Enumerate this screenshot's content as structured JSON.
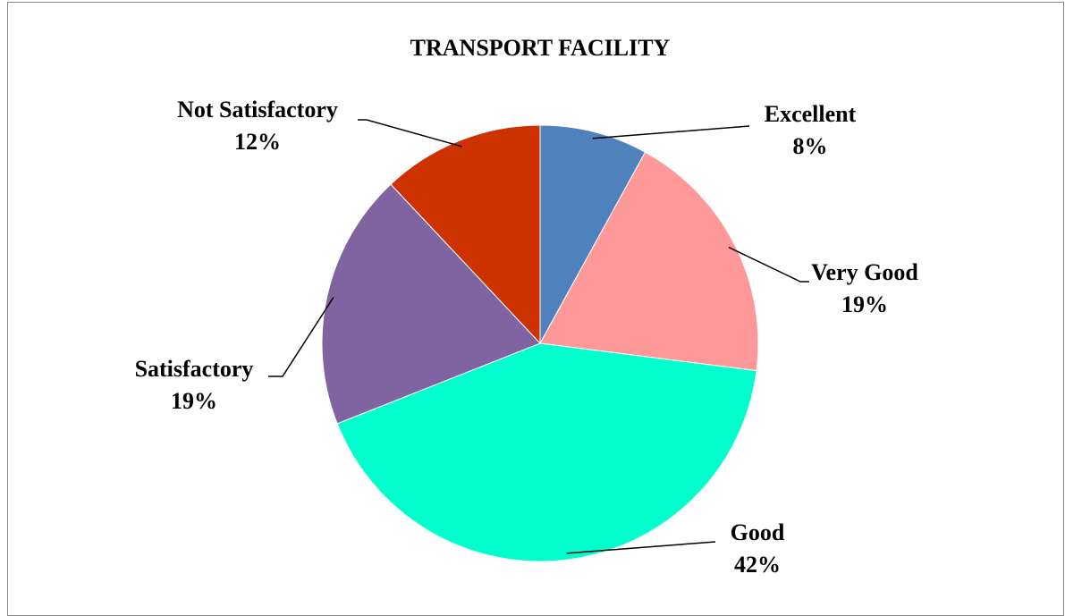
{
  "chart_data": {
    "type": "pie",
    "title": "TRANSPORT FACILITY",
    "categories": [
      "Excellent",
      "Very Good",
      "Good",
      "Satisfactory",
      "Not Satisfactory"
    ],
    "values": [
      8,
      19,
      42,
      19,
      12
    ],
    "value_labels": [
      "8%",
      "19%",
      "42%",
      "19%",
      "12%"
    ],
    "colors": [
      "#4f81bd",
      "#ff9999",
      "#00ffcc",
      "#8064a2",
      "#cc3300"
    ]
  }
}
